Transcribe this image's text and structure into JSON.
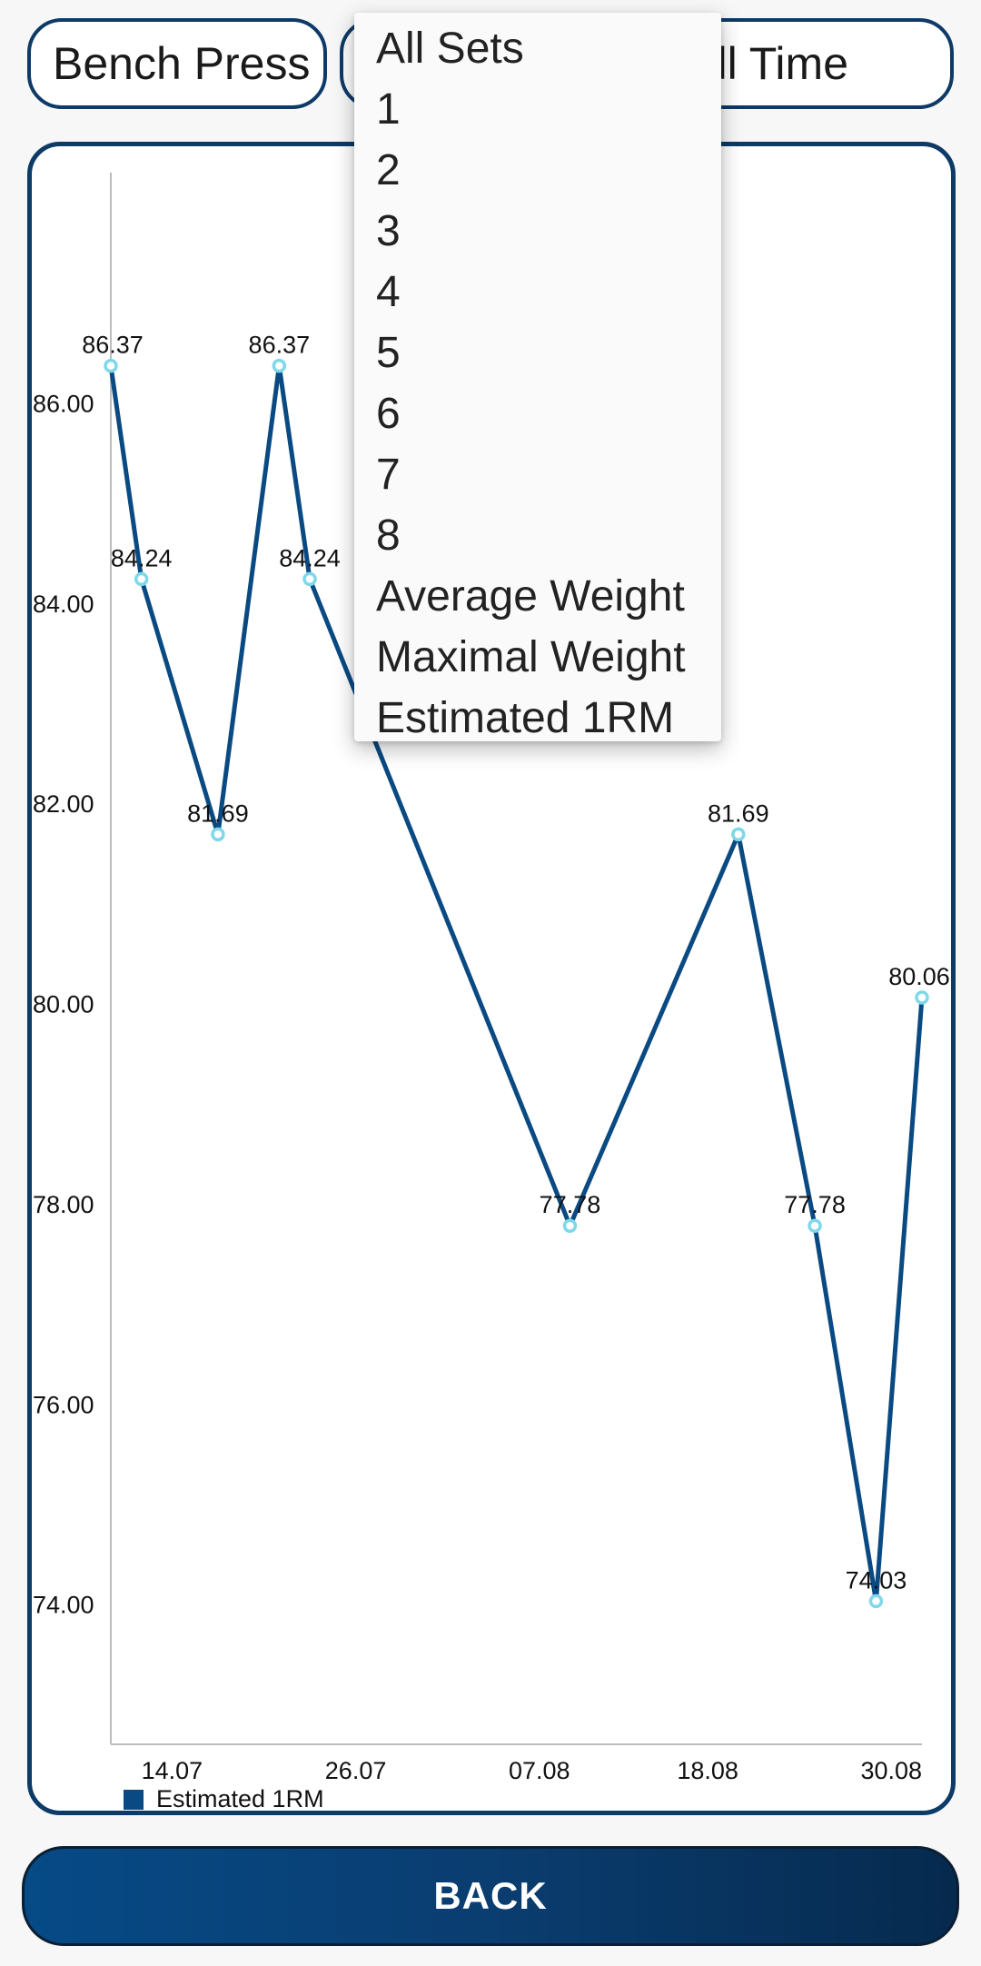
{
  "filters": {
    "exercise": "Bench Press",
    "sets": "",
    "period": "All Time"
  },
  "dropdown": {
    "options": [
      "All Sets",
      "1",
      "2",
      "3",
      "4",
      "5",
      "6",
      "7",
      "8",
      "Average Weight",
      "Maximal Weight",
      "Estimated 1RM"
    ]
  },
  "chart_data": {
    "type": "line",
    "series": [
      {
        "name": "Estimated 1RM",
        "color": "#0a4a82",
        "points": [
          {
            "x": "10.07",
            "y": 86.37
          },
          {
            "x": "12.07",
            "y": 84.24
          },
          {
            "x": "17.07",
            "y": 81.69
          },
          {
            "x": "21.07",
            "y": 86.37
          },
          {
            "x": "23.07",
            "y": 84.24
          },
          {
            "x": "09.08",
            "y": 77.78
          },
          {
            "x": "20.08",
            "y": 81.69
          },
          {
            "x": "25.08",
            "y": 77.78
          },
          {
            "x": "29.08",
            "y": 74.03
          },
          {
            "x": "01.09",
            "y": 80.06
          }
        ]
      }
    ],
    "x_ticks": [
      "14.07",
      "26.07",
      "07.08",
      "18.08",
      "30.08"
    ],
    "y_ticks": [
      "74.00",
      "76.00",
      "78.00",
      "80.00",
      "82.00",
      "84.00",
      "86.00"
    ],
    "ylim": [
      72.6,
      88.3
    ],
    "legend": "bottom-left",
    "grid": false
  },
  "back_button": {
    "label": "BACK"
  }
}
